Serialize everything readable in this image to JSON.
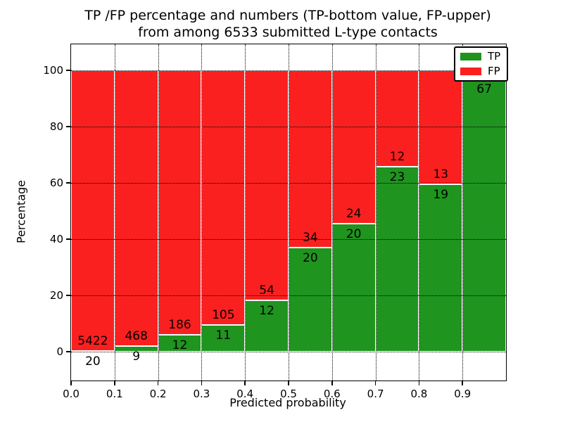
{
  "chart_data": {
    "type": "bar",
    "stacked": true,
    "title_line1": "TP /FP percentage and numbers (TP-bottom value, FP-upper)",
    "title_line2": "from among 6533 submitted L-type contacts",
    "xlabel": "Predicted probability",
    "ylabel": "Percentage",
    "xlim": [
      0.0,
      1.0
    ],
    "ylim": [
      -10.25,
      109.25
    ],
    "x_ticks": [
      "0.0",
      "0.1",
      "0.2",
      "0.3",
      "0.4",
      "0.5",
      "0.6",
      "0.7",
      "0.8",
      "0.9"
    ],
    "x_tick_values": [
      0.0,
      0.1,
      0.2,
      0.3,
      0.4,
      0.5,
      0.6,
      0.7,
      0.8,
      0.9
    ],
    "y_ticks": [
      "0",
      "20",
      "40",
      "60",
      "80",
      "100"
    ],
    "y_tick_values": [
      0,
      20,
      40,
      60,
      80,
      100
    ],
    "grid": {
      "style": "dotted",
      "color": "#000000",
      "above_bars": true
    },
    "colors": {
      "tp": "#1f941f",
      "fp": "#fb2020",
      "bar_edge": "#ffffff",
      "text": "#000000"
    },
    "legend": {
      "position": "upper-right",
      "entries": [
        {
          "label": "TP",
          "color": "#1f941f"
        },
        {
          "label": "FP",
          "color": "#fb2020"
        }
      ]
    },
    "bins": [
      {
        "x0": 0.0,
        "x1": 0.1,
        "tp_count": 20,
        "fp_count": 5422,
        "tp_pct": 0.37,
        "tp_label": "20",
        "fp_label": "5422"
      },
      {
        "x0": 0.1,
        "x1": 0.2,
        "tp_count": 9,
        "fp_count": 468,
        "tp_pct": 1.89,
        "tp_label": "9",
        "fp_label": "468"
      },
      {
        "x0": 0.2,
        "x1": 0.3,
        "tp_count": 12,
        "fp_count": 186,
        "tp_pct": 6.06,
        "tp_label": "12",
        "fp_label": "186"
      },
      {
        "x0": 0.3,
        "x1": 0.4,
        "tp_count": 11,
        "fp_count": 105,
        "tp_pct": 9.48,
        "tp_label": "11",
        "fp_label": "105"
      },
      {
        "x0": 0.4,
        "x1": 0.5,
        "tp_count": 12,
        "fp_count": 54,
        "tp_pct": 18.18,
        "tp_label": "12",
        "fp_label": "54"
      },
      {
        "x0": 0.5,
        "x1": 0.6,
        "tp_count": 20,
        "fp_count": 34,
        "tp_pct": 37.04,
        "tp_label": "20",
        "fp_label": "34"
      },
      {
        "x0": 0.6,
        "x1": 0.7,
        "tp_count": 20,
        "fp_count": 24,
        "tp_pct": 45.45,
        "tp_label": "20",
        "fp_label": "24"
      },
      {
        "x0": 0.7,
        "x1": 0.8,
        "tp_count": 23,
        "fp_count": 12,
        "tp_pct": 65.71,
        "tp_label": "23",
        "fp_label": "12"
      },
      {
        "x0": 0.8,
        "x1": 0.9,
        "tp_count": 19,
        "fp_count": 13,
        "tp_pct": 59.38,
        "tp_label": "19",
        "fp_label": "13"
      },
      {
        "x0": 0.9,
        "x1": 1.0,
        "tp_count": 67,
        "tp_pct": 97.1,
        "tp_label": "67",
        "fp_label": ""
      }
    ]
  }
}
